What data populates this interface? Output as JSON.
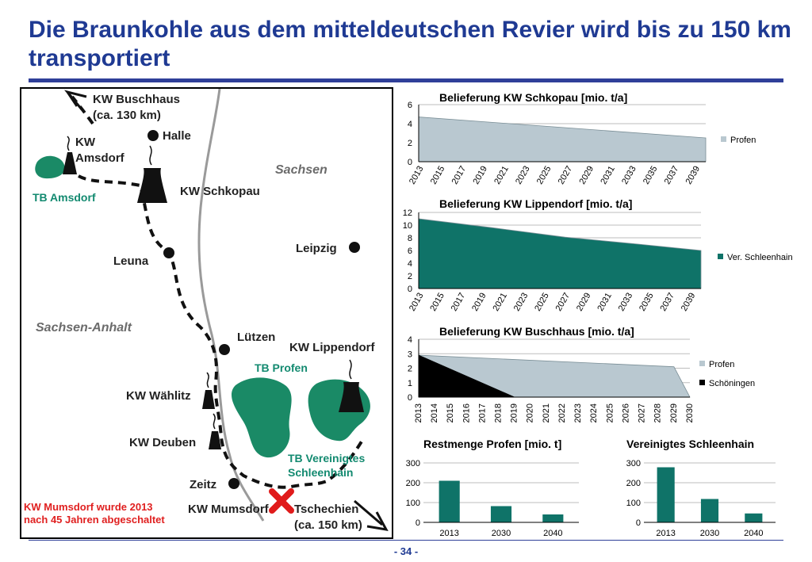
{
  "slide": {
    "title": "Die Braunkohle aus dem mitteldeutschen Revier wird bis zu 150 km transportiert",
    "page_number": "- 34 -"
  },
  "map": {
    "labels": {
      "buschhaus": "KW Buschhaus",
      "buschhaus_dist": "(ca. 130 km)",
      "halle": "Halle",
      "kw": "KW",
      "amsdorf": "Amsdorf",
      "tb_amsdorf": "TB Amsdorf",
      "schkopau": "KW Schkopau",
      "sachsen": "Sachsen",
      "leipzig": "Leipzig",
      "leuna": "Leuna",
      "sachsen_anhalt": "Sachsen-Anhalt",
      "luetzen": "Lützen",
      "lippendorf": "KW Lippendorf",
      "tb_profen": "TB Profen",
      "waehlitz": "KW Wählitz",
      "deuben": "KW Deuben",
      "tb_ver_1": "TB Vereinigtes",
      "tb_ver_2": "Schleenhain",
      "zeitz": "Zeitz",
      "mumsdorf": "KW Mumsdorf",
      "tschechien": "Tschechien",
      "tschechien_dist": "(ca. 150 km)"
    },
    "note_line1": "KW Mumsdorf wurde 2013",
    "note_line2": "nach 45 Jahren abgeschaltet",
    "colors": {
      "mine_green": "#1a8a66",
      "route": "#111111",
      "river": "#9a9a9a",
      "cross": "#e01b1b"
    }
  },
  "chart_data": [
    {
      "id": "schkopau",
      "type": "area",
      "title": "Belieferung KW Schkopau [mio. t/a]",
      "x": [
        2013,
        2039
      ],
      "xticks": [
        "2013",
        "2015",
        "2017",
        "2019",
        "2021",
        "2023",
        "2025",
        "2027",
        "2029",
        "2031",
        "2033",
        "2035",
        "2037",
        "2039"
      ],
      "ylim": [
        0,
        6
      ],
      "yticks": [
        0,
        2,
        4,
        6
      ],
      "series": [
        {
          "name": "Profen",
          "color": "#b9c8d0",
          "points": [
            [
              2013,
              4.7
            ],
            [
              2040,
              2.5
            ]
          ]
        }
      ],
      "legend": "right"
    },
    {
      "id": "lippendorf",
      "type": "area",
      "title": "Belieferung KW Lippendorf [mio. t/a]",
      "x": [
        2013,
        2039
      ],
      "xticks": [
        "2013",
        "2015",
        "2017",
        "2019",
        "2021",
        "2023",
        "2025",
        "2027",
        "2029",
        "2031",
        "2033",
        "2035",
        "2037",
        "2039"
      ],
      "ylim": [
        0,
        12
      ],
      "yticks": [
        0,
        2,
        4,
        6,
        8,
        10,
        12
      ],
      "series": [
        {
          "name": "Ver. Schleenhain",
          "color": "#0f7368",
          "points": [
            [
              2013,
              11
            ],
            [
              2020,
              9.6
            ],
            [
              2027,
              8.1
            ],
            [
              2034,
              7.0
            ],
            [
              2040,
              6.0
            ]
          ]
        }
      ],
      "legend": "right"
    },
    {
      "id": "buschhaus",
      "type": "area",
      "title": "Belieferung KW Buschhaus [mio. t/a]",
      "x": [
        2013,
        2030
      ],
      "xticks": [
        "2013",
        "2014",
        "2015",
        "2016",
        "2017",
        "2018",
        "2019",
        "2020",
        "2021",
        "2022",
        "2023",
        "2024",
        "2025",
        "2026",
        "2027",
        "2028",
        "2029",
        "2030"
      ],
      "ylim": [
        0,
        4
      ],
      "yticks": [
        0,
        1,
        2,
        3,
        4
      ],
      "series": [
        {
          "name": "Profen",
          "color": "#b9c8d0",
          "points": [
            [
              2013,
              2.9
            ],
            [
              2029,
              2.1
            ],
            [
              2030,
              0
            ]
          ]
        },
        {
          "name": "Schöningen",
          "color": "#000000",
          "points": [
            [
              2013,
              2.9
            ],
            [
              2019,
              0
            ]
          ]
        }
      ],
      "legend": "right"
    },
    {
      "id": "restmenge",
      "type": "bar",
      "title": "Restmenge Profen [mio. t]",
      "categories": [
        "2013",
        "2030",
        "2040"
      ],
      "values": [
        210,
        82,
        40
      ],
      "ylim": [
        0,
        300
      ],
      "yticks": [
        0,
        100,
        200,
        300
      ],
      "color": "#0f7368"
    },
    {
      "id": "schleenhain",
      "type": "bar",
      "title": "Vereinigtes Schleenhain",
      "categories": [
        "2013",
        "2030",
        "2040"
      ],
      "values": [
        278,
        118,
        45
      ],
      "ylim": [
        0,
        300
      ],
      "yticks": [
        0,
        100,
        200,
        300
      ],
      "color": "#0f7368"
    }
  ]
}
